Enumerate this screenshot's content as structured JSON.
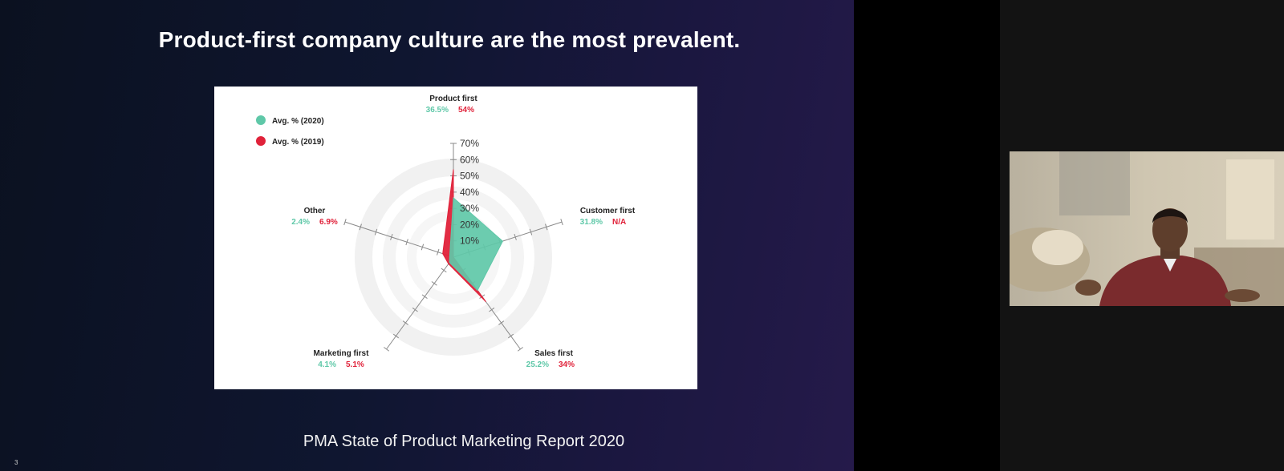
{
  "slide": {
    "title": "Product-first company culture are the most prevalent.",
    "caption": "PMA State of Product Marketing Report 2020",
    "slide_number": "3"
  },
  "chart_data": {
    "type": "radar",
    "legend": [
      {
        "label": "Avg. % (2020)",
        "color": "#5fc8a8"
      },
      {
        "label": "Avg. % (2019)",
        "color": "#e0223a"
      }
    ],
    "radial_ticks": [
      "70%",
      "60%",
      "50%",
      "40%",
      "30%",
      "20%",
      "10%"
    ],
    "rmax": 70,
    "categories": [
      {
        "name": "Product first",
        "v2020_label": "36.5%",
        "v2019_label": "54%"
      },
      {
        "name": "Customer first",
        "v2020_label": "31.8%",
        "v2019_label": "N/A"
      },
      {
        "name": "Sales first",
        "v2020_label": "25.2%",
        "v2019_label": "34%"
      },
      {
        "name": "Marketing first",
        "v2020_label": "4.1%",
        "v2019_label": "5.1%"
      },
      {
        "name": "Other",
        "v2020_label": "2.4%",
        "v2019_label": "6.9%"
      }
    ],
    "series": [
      {
        "name": "Avg. % (2020)",
        "color": "#5fc8a8",
        "values": [
          36.5,
          31.8,
          25.2,
          4.1,
          2.4
        ]
      },
      {
        "name": "Avg. % (2019)",
        "color": "#e0223a",
        "values": [
          54,
          0,
          34,
          5.1,
          6.9
        ]
      }
    ]
  },
  "webcam": {
    "icon": "presenter-video"
  }
}
